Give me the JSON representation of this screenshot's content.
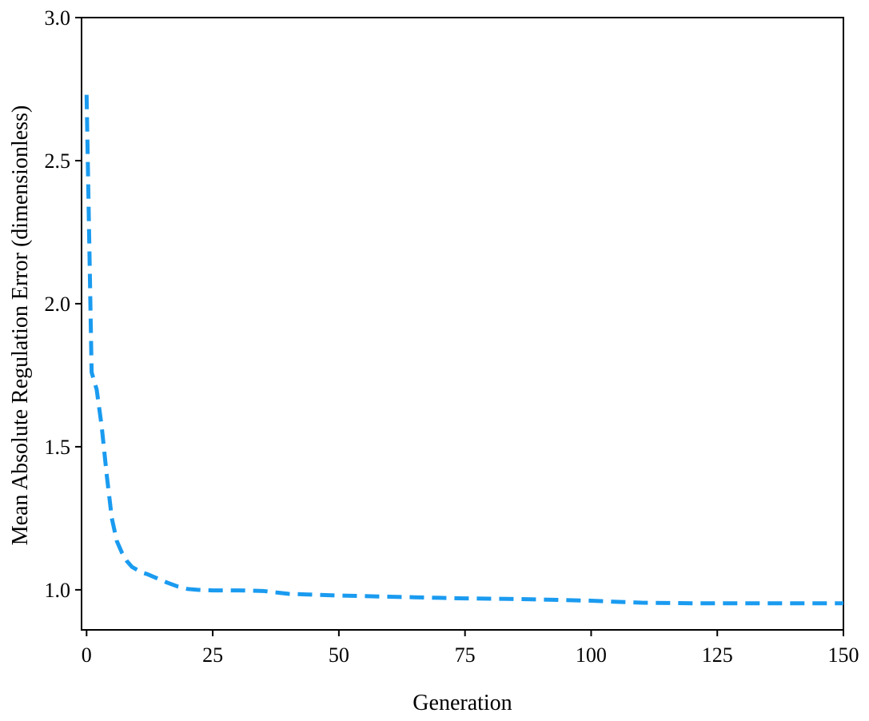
{
  "chart_data": {
    "type": "line",
    "xlabel": "Generation",
    "ylabel": "Mean Absolute Regulation Error (dimensionless)",
    "xlim": [
      -1,
      150
    ],
    "ylim": [
      0.86,
      3.0
    ],
    "x_ticks": [
      0,
      25,
      50,
      75,
      100,
      125,
      150
    ],
    "x_tick_labels": [
      "0",
      "25",
      "50",
      "75",
      "100",
      "125",
      "150"
    ],
    "y_ticks": [
      1.0,
      1.5,
      2.0,
      2.5,
      3.0
    ],
    "y_tick_labels": [
      "1.0",
      "1.5",
      "2.0",
      "2.5",
      "3.0"
    ],
    "grid": false,
    "legend": "none",
    "series": [
      {
        "line_style": "dashed",
        "color": "#1a9bf0",
        "x": [
          0,
          1,
          2,
          3,
          4,
          5,
          6,
          7,
          8,
          9,
          10,
          11,
          12,
          14,
          16,
          18,
          20,
          22,
          25,
          30,
          35,
          38,
          40,
          45,
          50,
          55,
          60,
          65,
          70,
          75,
          80,
          85,
          90,
          95,
          100,
          105,
          110,
          115,
          120,
          125,
          130,
          135,
          140,
          145,
          150
        ],
        "y": [
          2.73,
          1.76,
          1.7,
          1.57,
          1.4,
          1.25,
          1.17,
          1.13,
          1.1,
          1.08,
          1.07,
          1.06,
          1.055,
          1.04,
          1.025,
          1.012,
          1.003,
          1.0,
          0.998,
          0.998,
          0.996,
          0.99,
          0.986,
          0.983,
          0.98,
          0.978,
          0.976,
          0.974,
          0.972,
          0.97,
          0.969,
          0.968,
          0.966,
          0.964,
          0.962,
          0.958,
          0.955,
          0.954,
          0.953,
          0.953,
          0.953,
          0.953,
          0.953,
          0.953,
          0.953
        ]
      }
    ]
  }
}
